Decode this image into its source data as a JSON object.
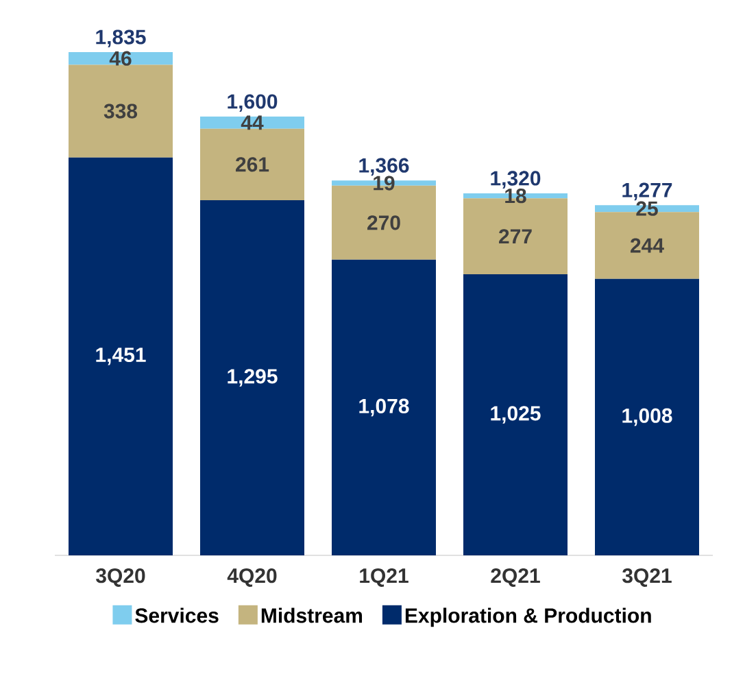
{
  "chart_data": {
    "type": "bar",
    "stacked": true,
    "legend": "bottom",
    "categories": [
      "3Q20",
      "4Q20",
      "1Q21",
      "2Q21",
      "3Q21"
    ],
    "series": [
      {
        "name": "Exploration & Production",
        "color": "#002b6b",
        "values": [
          1451,
          1295,
          1078,
          1025,
          1008
        ],
        "value_labels": [
          "1,451",
          "1,295",
          "1,078",
          "1,025",
          "1,008"
        ]
      },
      {
        "name": "Midstream",
        "color": "#c4b47f",
        "values": [
          338,
          261,
          270,
          277,
          244
        ],
        "value_labels": [
          "338",
          "261",
          "270",
          "277",
          "244"
        ]
      },
      {
        "name": "Services",
        "color": "#7fcdee",
        "values": [
          46,
          44,
          19,
          18,
          25
        ],
        "value_labels": [
          "46",
          "44",
          "19",
          "18",
          "25"
        ]
      }
    ],
    "totals": [
      "1,835",
      "1,600",
      "1,366",
      "1,320",
      "1,277"
    ]
  }
}
